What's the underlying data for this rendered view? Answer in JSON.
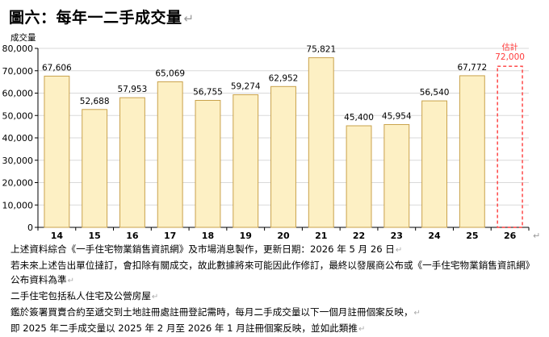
{
  "title": "圖六：每年一二手成交量",
  "return_mark": "↵",
  "chart_data": {
    "type": "bar",
    "title": "圖六：每年一二手成交量",
    "ylabel": "成交量",
    "xlabel": "",
    "ylim": [
      0,
      80000
    ],
    "ytick_step": 10000,
    "grid": true,
    "categories": [
      "14",
      "15",
      "16",
      "17",
      "18",
      "19",
      "20",
      "21",
      "22",
      "23",
      "24",
      "25",
      "26"
    ],
    "values": [
      67606,
      52688,
      57953,
      65069,
      56755,
      59274,
      62952,
      75821,
      45400,
      45954,
      56540,
      67772,
      null
    ],
    "value_labels": [
      "67,606",
      "52,688",
      "57,953",
      "65,069",
      "56,755",
      "59,274",
      "62,952",
      "75,821",
      "45,400",
      "45,954",
      "56,540",
      "67,772",
      ""
    ],
    "estimate": {
      "category": "26",
      "value": 72000,
      "value_label": "72,000",
      "label": "估計"
    },
    "colors": {
      "bar_fill": "#FDF0C4",
      "bar_stroke": "#C9A24B",
      "estimate": "#FF3B3B",
      "grid": "#D9D9D9"
    }
  },
  "notes": [
    "上述資料綜合《一手住宅物業銷售資訊網》及市場消息製作，更新日期：2026 年 5 月 26 日",
    "若未來上述告出單位撻訂，會扣除有關成交，故此數據將來可能因此作修訂，最終以發展商公布或《一手住宅物業銷售資訊網》",
    "公布資料為準",
    "二手住宅包括私人住宅及公營房屋",
    "鑑於簽署買賣合約至遞交到土地註冊處註冊登記需時，每月二手成交量以下一個月註冊個案反映，",
    "即 2025 年二手成交量以 2025 年 2 月至 2026 年 1 月註冊個案反映，並如此類推"
  ]
}
